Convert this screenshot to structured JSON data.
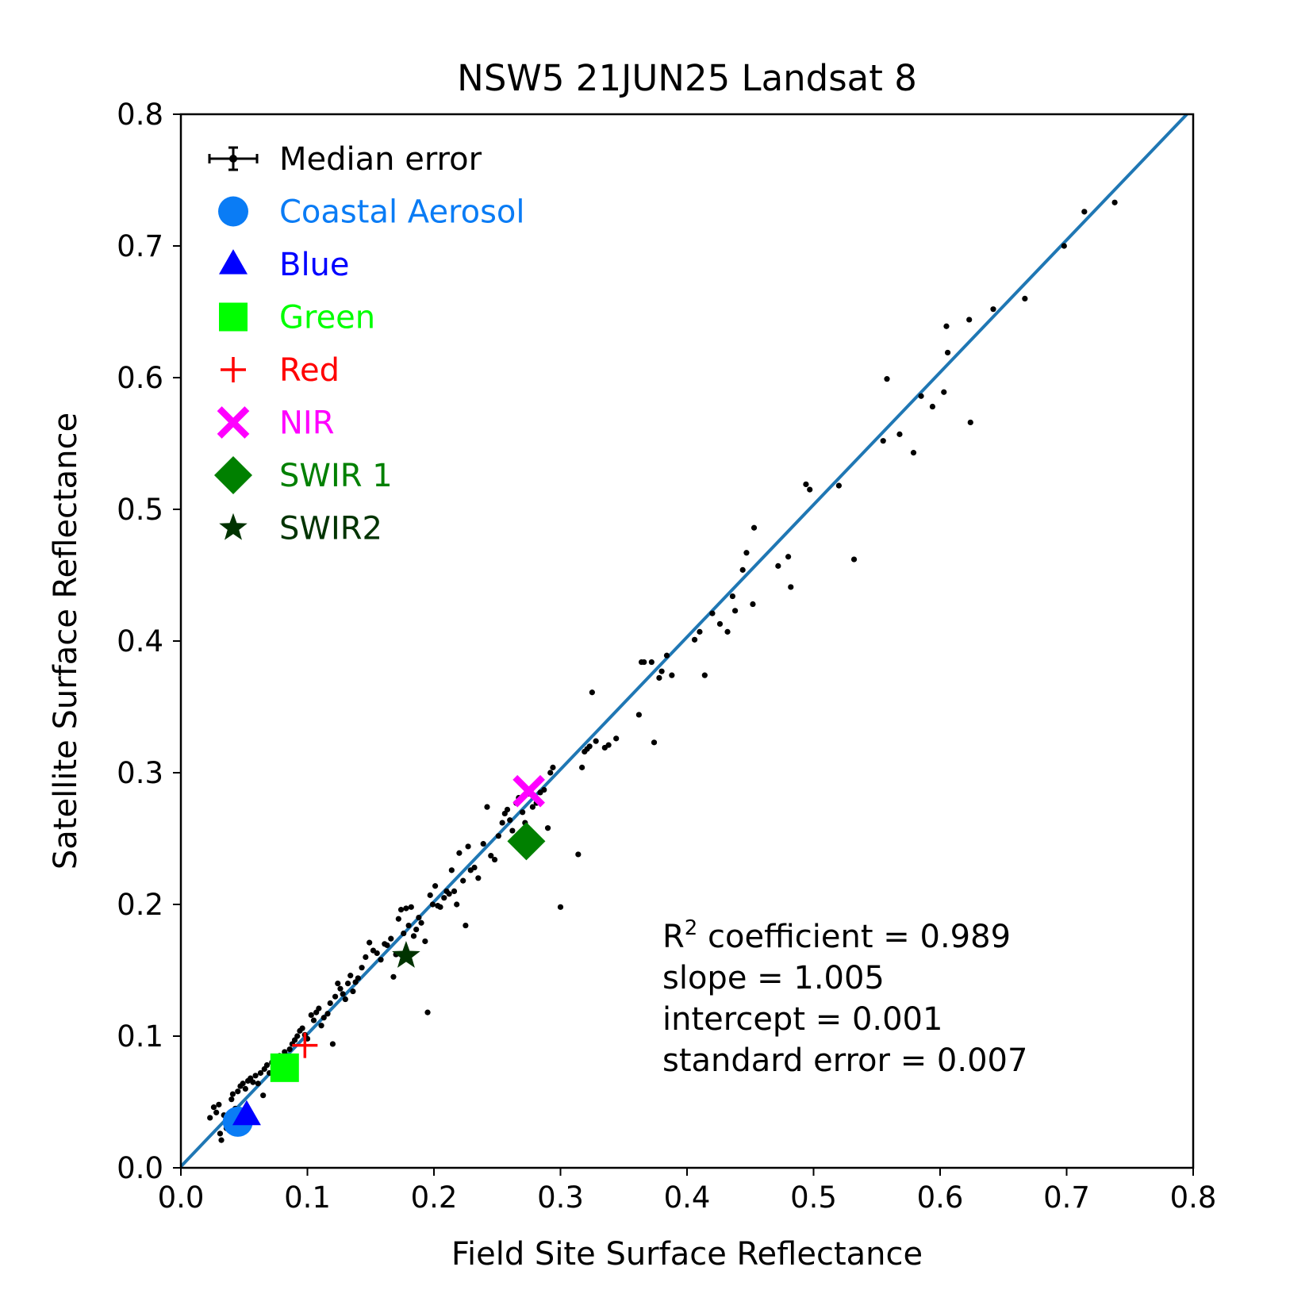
{
  "chart_data": {
    "type": "scatter",
    "title": "NSW5 21JUN25 Landsat 8",
    "xlabel": "Field Site Surface Reflectance",
    "ylabel": "Satellite Surface Reflectance",
    "xlim": [
      0.0,
      0.8
    ],
    "ylim": [
      0.0,
      0.8
    ],
    "xticks": [
      "0.0",
      "0.1",
      "0.2",
      "0.3",
      "0.4",
      "0.5",
      "0.6",
      "0.7",
      "0.8"
    ],
    "yticks": [
      "0.0",
      "0.1",
      "0.2",
      "0.3",
      "0.4",
      "0.5",
      "0.6",
      "0.7",
      "0.8"
    ],
    "grid": false,
    "legend_position": "top-left",
    "legend": [
      {
        "label": "Median error",
        "marker": "errorbar",
        "color": "#000000"
      },
      {
        "label": "Coastal Aerosol",
        "marker": "circle",
        "color": "#0a7cf5"
      },
      {
        "label": "Blue",
        "marker": "triangle",
        "color": "#0000ff"
      },
      {
        "label": "Green",
        "marker": "square",
        "color": "#00ff00"
      },
      {
        "label": "Red",
        "marker": "plus",
        "color": "#ff0000"
      },
      {
        "label": "NIR",
        "marker": "x",
        "color": "#ff00ff"
      },
      {
        "label": "SWIR 1",
        "marker": "diamond",
        "color": "#008000"
      },
      {
        "label": "SWIR2",
        "marker": "star",
        "color": "#003300"
      }
    ],
    "fit_line": {
      "slope": 1.005,
      "intercept": 0.001,
      "color": "#1f77b4"
    },
    "stats": {
      "r2_prefix": "R",
      "r2_sup": "2",
      "r2_rest": " coefficient = 0.989",
      "slope": "slope = 1.005",
      "intercept": "intercept = 0.001",
      "std_error": "standard error = 0.007"
    },
    "band_means": [
      {
        "band": "Coastal Aerosol",
        "x": 0.045,
        "y": 0.035
      },
      {
        "band": "Blue",
        "x": 0.052,
        "y": 0.04
      },
      {
        "band": "Green",
        "x": 0.082,
        "y": 0.076
      },
      {
        "band": "Red",
        "x": 0.098,
        "y": 0.093
      },
      {
        "band": "NIR",
        "x": 0.275,
        "y": 0.286
      },
      {
        "band": "SWIR 1",
        "x": 0.273,
        "y": 0.248
      },
      {
        "band": "SWIR2",
        "x": 0.178,
        "y": 0.161
      }
    ],
    "points": [
      [
        0.023,
        0.038
      ],
      [
        0.026,
        0.046
      ],
      [
        0.028,
        0.042
      ],
      [
        0.03,
        0.048
      ],
      [
        0.031,
        0.026
      ],
      [
        0.032,
        0.021
      ],
      [
        0.034,
        0.04
      ],
      [
        0.036,
        0.03
      ],
      [
        0.038,
        0.036
      ],
      [
        0.04,
        0.052
      ],
      [
        0.041,
        0.056
      ],
      [
        0.043,
        0.045
      ],
      [
        0.045,
        0.058
      ],
      [
        0.047,
        0.062
      ],
      [
        0.049,
        0.064
      ],
      [
        0.051,
        0.06
      ],
      [
        0.053,
        0.066
      ],
      [
        0.055,
        0.068
      ],
      [
        0.057,
        0.065
      ],
      [
        0.059,
        0.07
      ],
      [
        0.061,
        0.064
      ],
      [
        0.063,
        0.072
      ],
      [
        0.065,
        0.055
      ],
      [
        0.066,
        0.075
      ],
      [
        0.068,
        0.078
      ],
      [
        0.07,
        0.072
      ],
      [
        0.072,
        0.08
      ],
      [
        0.074,
        0.083
      ],
      [
        0.076,
        0.079
      ],
      [
        0.078,
        0.085
      ],
      [
        0.08,
        0.082
      ],
      [
        0.082,
        0.088
      ],
      [
        0.084,
        0.073
      ],
      [
        0.086,
        0.09
      ],
      [
        0.088,
        0.094
      ],
      [
        0.09,
        0.097
      ],
      [
        0.092,
        0.1
      ],
      [
        0.094,
        0.104
      ],
      [
        0.096,
        0.106
      ],
      [
        0.098,
        0.101
      ],
      [
        0.1,
        0.098
      ],
      [
        0.103,
        0.116
      ],
      [
        0.105,
        0.112
      ],
      [
        0.107,
        0.118
      ],
      [
        0.109,
        0.121
      ],
      [
        0.111,
        0.108
      ],
      [
        0.113,
        0.114
      ],
      [
        0.116,
        0.117
      ],
      [
        0.118,
        0.125
      ],
      [
        0.12,
        0.094
      ],
      [
        0.122,
        0.13
      ],
      [
        0.124,
        0.14
      ],
      [
        0.126,
        0.136
      ],
      [
        0.128,
        0.132
      ],
      [
        0.13,
        0.128
      ],
      [
        0.132,
        0.14
      ],
      [
        0.134,
        0.146
      ],
      [
        0.136,
        0.134
      ],
      [
        0.138,
        0.141
      ],
      [
        0.14,
        0.144
      ],
      [
        0.143,
        0.152
      ],
      [
        0.146,
        0.16
      ],
      [
        0.149,
        0.171
      ],
      [
        0.152,
        0.165
      ],
      [
        0.155,
        0.163
      ],
      [
        0.158,
        0.158
      ],
      [
        0.161,
        0.17
      ],
      [
        0.163,
        0.169
      ],
      [
        0.166,
        0.174
      ],
      [
        0.168,
        0.145
      ],
      [
        0.17,
        0.162
      ],
      [
        0.172,
        0.189
      ],
      [
        0.174,
        0.196
      ],
      [
        0.176,
        0.178
      ],
      [
        0.178,
        0.197
      ],
      [
        0.18,
        0.184
      ],
      [
        0.182,
        0.198
      ],
      [
        0.184,
        0.176
      ],
      [
        0.186,
        0.181
      ],
      [
        0.188,
        0.19
      ],
      [
        0.19,
        0.186
      ],
      [
        0.193,
        0.172
      ],
      [
        0.195,
        0.118
      ],
      [
        0.197,
        0.207
      ],
      [
        0.199,
        0.2
      ],
      [
        0.201,
        0.214
      ],
      [
        0.203,
        0.199
      ],
      [
        0.205,
        0.198
      ],
      [
        0.208,
        0.205
      ],
      [
        0.21,
        0.21
      ],
      [
        0.212,
        0.208
      ],
      [
        0.214,
        0.226
      ],
      [
        0.216,
        0.21
      ],
      [
        0.218,
        0.2
      ],
      [
        0.22,
        0.239
      ],
      [
        0.223,
        0.218
      ],
      [
        0.225,
        0.184
      ],
      [
        0.227,
        0.244
      ],
      [
        0.229,
        0.226
      ],
      [
        0.232,
        0.228
      ],
      [
        0.235,
        0.22
      ],
      [
        0.239,
        0.246
      ],
      [
        0.242,
        0.274
      ],
      [
        0.245,
        0.237
      ],
      [
        0.248,
        0.234
      ],
      [
        0.251,
        0.252
      ],
      [
        0.254,
        0.262
      ],
      [
        0.256,
        0.269
      ],
      [
        0.258,
        0.272
      ],
      [
        0.26,
        0.264
      ],
      [
        0.262,
        0.256
      ],
      [
        0.265,
        0.277
      ],
      [
        0.267,
        0.281
      ],
      [
        0.27,
        0.27
      ],
      [
        0.272,
        0.262
      ],
      [
        0.275,
        0.284
      ],
      [
        0.278,
        0.274
      ],
      [
        0.281,
        0.277
      ],
      [
        0.284,
        0.285
      ],
      [
        0.287,
        0.287
      ],
      [
        0.29,
        0.258
      ],
      [
        0.292,
        0.3
      ],
      [
        0.294,
        0.304
      ],
      [
        0.3,
        0.198
      ],
      [
        0.314,
        0.238
      ],
      [
        0.317,
        0.304
      ],
      [
        0.319,
        0.316
      ],
      [
        0.321,
        0.318
      ],
      [
        0.323,
        0.32
      ],
      [
        0.325,
        0.361
      ],
      [
        0.328,
        0.324
      ],
      [
        0.335,
        0.319
      ],
      [
        0.338,
        0.321
      ],
      [
        0.344,
        0.326
      ],
      [
        0.362,
        0.344
      ],
      [
        0.364,
        0.384
      ],
      [
        0.366,
        0.384
      ],
      [
        0.372,
        0.384
      ],
      [
        0.374,
        0.323
      ],
      [
        0.378,
        0.372
      ],
      [
        0.38,
        0.377
      ],
      [
        0.384,
        0.389
      ],
      [
        0.388,
        0.374
      ],
      [
        0.406,
        0.401
      ],
      [
        0.41,
        0.407
      ],
      [
        0.414,
        0.374
      ],
      [
        0.42,
        0.421
      ],
      [
        0.426,
        0.413
      ],
      [
        0.432,
        0.407
      ],
      [
        0.436,
        0.434
      ],
      [
        0.438,
        0.423
      ],
      [
        0.444,
        0.454
      ],
      [
        0.447,
        0.467
      ],
      [
        0.452,
        0.428
      ],
      [
        0.453,
        0.486
      ],
      [
        0.472,
        0.457
      ],
      [
        0.48,
        0.464
      ],
      [
        0.482,
        0.441
      ],
      [
        0.494,
        0.519
      ],
      [
        0.497,
        0.515
      ],
      [
        0.52,
        0.518
      ],
      [
        0.532,
        0.462
      ],
      [
        0.555,
        0.552
      ],
      [
        0.558,
        0.599
      ],
      [
        0.568,
        0.557
      ],
      [
        0.579,
        0.543
      ],
      [
        0.585,
        0.586
      ],
      [
        0.594,
        0.578
      ],
      [
        0.603,
        0.589
      ],
      [
        0.605,
        0.639
      ],
      [
        0.606,
        0.619
      ],
      [
        0.623,
        0.644
      ],
      [
        0.624,
        0.566
      ],
      [
        0.642,
        0.652
      ],
      [
        0.667,
        0.66
      ],
      [
        0.698,
        0.7
      ],
      [
        0.714,
        0.726
      ],
      [
        0.738,
        0.733
      ]
    ]
  }
}
